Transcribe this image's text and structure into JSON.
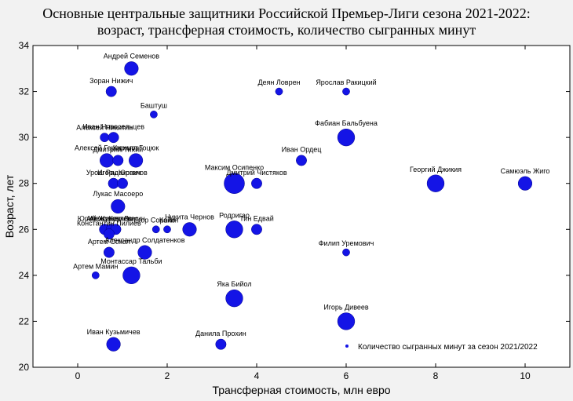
{
  "chart_data": {
    "type": "scatter",
    "title_line1": "Основные центральные защитники Российской Премьер-Лиги сезона 2021-2022:",
    "title_line2": "возраст, трансферная стоимость, количество сыгранных минут",
    "xlabel": "Трансферная стоимость, млн евро",
    "ylabel": "Возраст, лет",
    "xlim": [
      -1,
      11
    ],
    "ylim": [
      20,
      34
    ],
    "xticks": [
      0,
      2,
      4,
      6,
      8,
      10
    ],
    "yticks": [
      20,
      22,
      24,
      26,
      28,
      30,
      32,
      34
    ],
    "legend": "Количество сыгранных минут за сезон 2021/2022",
    "legend_position": "bottom-right",
    "color": "#1414e6",
    "points": [
      {
        "name": "Андрей Семенов",
        "x": 1.2,
        "y": 33,
        "size": 3
      },
      {
        "name": "Зоран Нижич",
        "x": 0.75,
        "y": 32,
        "size": 2
      },
      {
        "name": "Деян Ловрен",
        "x": 4.5,
        "y": 32,
        "size": 1
      },
      {
        "name": "Ярослав Ракицкий",
        "x": 6,
        "y": 32,
        "size": 1
      },
      {
        "name": "Баштуш",
        "x": 1.7,
        "y": 31,
        "size": 1
      },
      {
        "name": "Алексей Никитин",
        "x": 0.6,
        "y": 30,
        "size": 1.5
      },
      {
        "name": "Иван Новосельцев",
        "x": 0.8,
        "y": 30,
        "size": 2
      },
      {
        "name": "Фабиан Бальбуена",
        "x": 6,
        "y": 30,
        "size": 4
      },
      {
        "name": "Кирилл Гоцюк",
        "x": 1.3,
        "y": 29,
        "size": 3
      },
      {
        "name": "Алексей Герасимов",
        "x": 0.65,
        "y": 29,
        "size": 3
      },
      {
        "name": "Дмитрий Тихий",
        "x": 0.9,
        "y": 29,
        "size": 2
      },
      {
        "name": "Иван Ордец",
        "x": 5,
        "y": 29,
        "size": 2
      },
      {
        "name": "Урош Радакович",
        "x": 0.8,
        "y": 28,
        "size": 2
      },
      {
        "name": "Игорь Юрганов",
        "x": 1,
        "y": 28,
        "size": 2
      },
      {
        "name": "Максим Осипенко",
        "x": 3.5,
        "y": 28,
        "size": 5
      },
      {
        "name": "Дмитрий Чистяков",
        "x": 4,
        "y": 28,
        "size": 2
      },
      {
        "name": "Георгий Джикия",
        "x": 8,
        "y": 28,
        "size": 4
      },
      {
        "name": "Самюэль Жиго",
        "x": 10,
        "y": 28,
        "size": 3
      },
      {
        "name": "Лукас Масоеро",
        "x": 0.9,
        "y": 27,
        "size": 3
      },
      {
        "name": "Юрий Журавлев",
        "x": 0.6,
        "y": 26,
        "size": 2
      },
      {
        "name": "Акош Кечкеш",
        "x": 0.75,
        "y": 26,
        "size": 2
      },
      {
        "name": "Александр Ломин",
        "x": 0.85,
        "y": 26,
        "size": 2
      },
      {
        "name": "Константин Пилиев",
        "x": 0.7,
        "y": 25.8,
        "size": 2
      },
      {
        "name": "Егор Сорокин",
        "x": 1.75,
        "y": 26,
        "size": 1
      },
      {
        "name": "Кайо",
        "x": 2,
        "y": 26,
        "size": 1
      },
      {
        "name": "Никита Чернов",
        "x": 2.5,
        "y": 26,
        "size": 3
      },
      {
        "name": "Родригао",
        "x": 3.5,
        "y": 26,
        "size": 4
      },
      {
        "name": "Тин Едвай",
        "x": 4,
        "y": 26,
        "size": 2
      },
      {
        "name": "Артем Сокол",
        "x": 0.7,
        "y": 25,
        "size": 2
      },
      {
        "name": "Александр Солдатенков",
        "x": 1.5,
        "y": 25,
        "size": 3
      },
      {
        "name": "Филип Уремович",
        "x": 6,
        "y": 25,
        "size": 1
      },
      {
        "name": "Монтассар Тальби",
        "x": 1.2,
        "y": 24,
        "size": 4
      },
      {
        "name": "Артем Мамин",
        "x": 0.4,
        "y": 24,
        "size": 1
      },
      {
        "name": "Яка Бийол",
        "x": 3.5,
        "y": 23,
        "size": 4
      },
      {
        "name": "Игорь Дивеев",
        "x": 6,
        "y": 22,
        "size": 4
      },
      {
        "name": "Иван Кузьмичев",
        "x": 0.8,
        "y": 21,
        "size": 3
      },
      {
        "name": "Данила Прохин",
        "x": 3.2,
        "y": 21,
        "size": 2
      }
    ]
  }
}
